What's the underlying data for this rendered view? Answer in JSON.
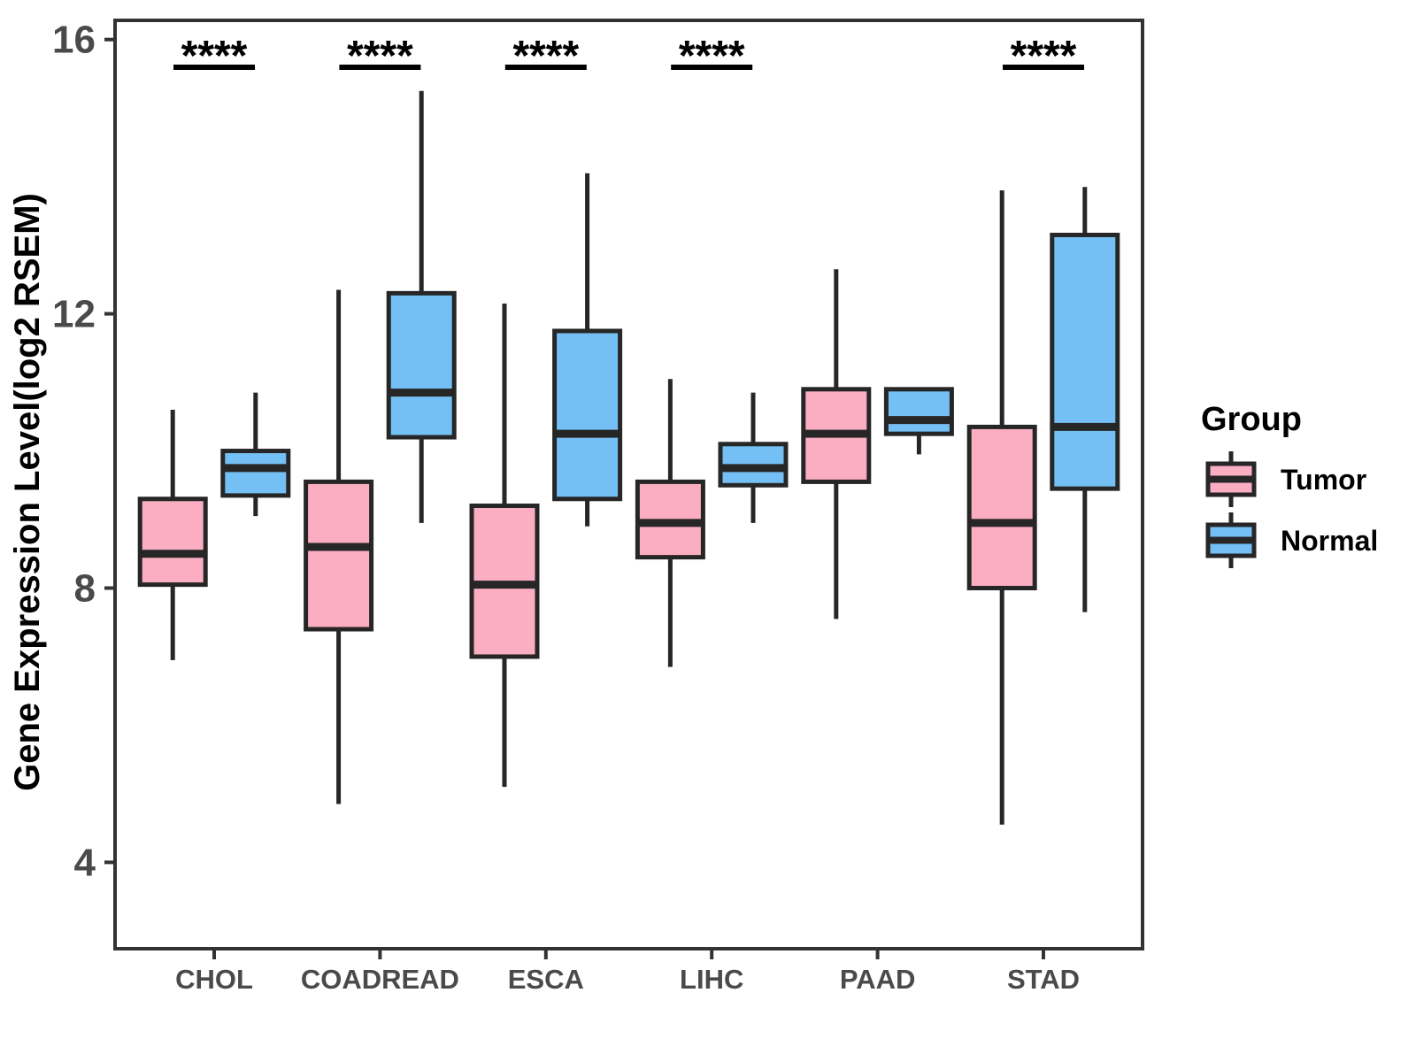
{
  "chart_data": {
    "type": "boxplot",
    "title": "",
    "xlabel": "",
    "ylabel": "Gene Expression Level(log2 RSEM)",
    "y_ticks": [
      "16",
      "12",
      "8",
      "4"
    ],
    "y_tick_values": [
      16,
      12,
      8,
      4
    ],
    "ylim": [
      2.74,
      16.28
    ],
    "grid": false,
    "categories": [
      "CHOL",
      "COADREAD",
      "ESCA",
      "LIHC",
      "PAAD",
      "STAD"
    ],
    "groups": [
      "Tumor",
      "Normal"
    ],
    "legend": {
      "title": "Group",
      "position": "right",
      "entries": [
        {
          "label": "Tumor",
          "color": "#FBAEC2"
        },
        {
          "label": "Normal",
          "color": "#74C0F4"
        }
      ]
    },
    "significance": [
      {
        "category": "CHOL",
        "label": "****"
      },
      {
        "category": "COADREAD",
        "label": "****"
      },
      {
        "category": "ESCA",
        "label": "****"
      },
      {
        "category": "LIHC",
        "label": "****"
      },
      {
        "category": "STAD",
        "label": "****"
      }
    ],
    "series": [
      {
        "name": "Tumor",
        "fill": "#FBAEC2",
        "boxes": [
          {
            "category": "CHOL",
            "low": 6.95,
            "q1": 8.05,
            "median": 8.5,
            "q3": 9.3,
            "high": 10.6
          },
          {
            "category": "COADREAD",
            "low": 4.85,
            "q1": 7.4,
            "median": 8.6,
            "q3": 9.55,
            "high": 12.35
          },
          {
            "category": "ESCA",
            "low": 5.1,
            "q1": 7.0,
            "median": 8.05,
            "q3": 9.2,
            "high": 12.15
          },
          {
            "category": "LIHC",
            "low": 6.85,
            "q1": 8.45,
            "median": 8.95,
            "q3": 9.55,
            "high": 11.05
          },
          {
            "category": "PAAD",
            "low": 7.55,
            "q1": 9.55,
            "median": 10.25,
            "q3": 10.9,
            "high": 12.65
          },
          {
            "category": "STAD",
            "low": 4.55,
            "q1": 8.0,
            "median": 8.95,
            "q3": 10.35,
            "high": 13.8
          }
        ]
      },
      {
        "name": "Normal",
        "fill": "#74C0F4",
        "boxes": [
          {
            "category": "CHOL",
            "low": 9.05,
            "q1": 9.35,
            "median": 9.75,
            "q3": 10.0,
            "high": 10.85
          },
          {
            "category": "COADREAD",
            "low": 8.95,
            "q1": 10.2,
            "median": 10.85,
            "q3": 12.3,
            "high": 15.25
          },
          {
            "category": "ESCA",
            "low": 8.9,
            "q1": 9.3,
            "median": 10.25,
            "q3": 11.75,
            "high": 14.05
          },
          {
            "category": "LIHC",
            "low": 8.95,
            "q1": 9.5,
            "median": 9.75,
            "q3": 10.1,
            "high": 10.85
          },
          {
            "category": "PAAD",
            "low": 9.95,
            "q1": 10.25,
            "median": 10.45,
            "q3": 10.9,
            "high": 10.9
          },
          {
            "category": "STAD",
            "low": 7.65,
            "q1": 9.45,
            "median": 10.35,
            "q3": 13.15,
            "high": 13.85
          }
        ]
      }
    ],
    "style": {
      "box_stroke": "#262626",
      "panel_border": "#333333",
      "tick_label_color": "#4a4a4a",
      "text_color": "#000000"
    }
  }
}
